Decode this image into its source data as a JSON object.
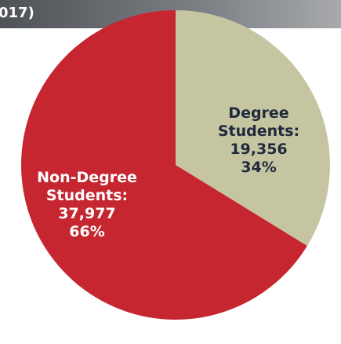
{
  "header": {
    "title": "017)"
  },
  "chart_data": {
    "type": "pie",
    "categories": [
      "Degree Students:",
      "Non-Degree Students:"
    ],
    "values": [
      19356,
      37977
    ],
    "value_labels": [
      "19,356",
      "37,977"
    ],
    "percent_labels": [
      "34%",
      "66%"
    ],
    "colors": [
      "#c6c5a2",
      "#c5262f"
    ]
  }
}
